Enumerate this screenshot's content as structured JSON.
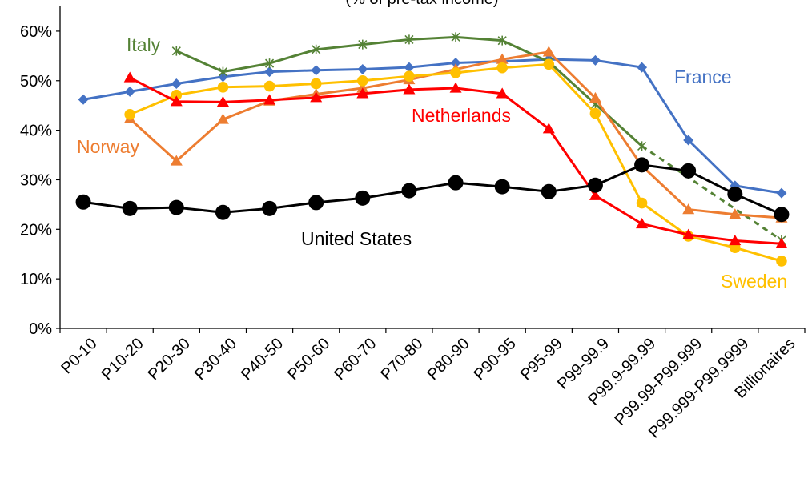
{
  "chart_data": {
    "type": "line",
    "title": "(% of pre-tax income)",
    "xlabel": "",
    "ylabel": "",
    "ylim": [
      0,
      65
    ],
    "yticks": [
      0,
      10,
      20,
      30,
      40,
      50,
      60
    ],
    "ytick_labels": [
      "0%",
      "10%",
      "20%",
      "30%",
      "40%",
      "50%",
      "60%"
    ],
    "grid": false,
    "legend": "inline labels",
    "categories": [
      "P0-10",
      "P10-20",
      "P20-30",
      "P30-40",
      "P40-50",
      "P50-60",
      "P60-70",
      "P70-80",
      "P80-90",
      "P90-95",
      "P95-99",
      "P99-99.9",
      "P99.9-99.99",
      "P99.99-P99.999",
      "P99.999-P99.9999",
      "Billionaires"
    ],
    "series": [
      {
        "name": "France",
        "color": "#4472C4",
        "marker": "diamond",
        "values": [
          46.2,
          47.8,
          49.4,
          50.8,
          51.8,
          52.1,
          52.3,
          52.7,
          53.6,
          53.9,
          54.3,
          54.1,
          52.7,
          38.0,
          28.8,
          27.3
        ]
      },
      {
        "name": "Italy",
        "color": "#548235",
        "marker": "star",
        "values": [
          null,
          null,
          56.0,
          51.8,
          53.5,
          56.3,
          57.3,
          58.3,
          58.8,
          58.1,
          53.8,
          45.3,
          36.8,
          null,
          null,
          17.8
        ],
        "dashed_from_index": 12
      },
      {
        "name": "Norway",
        "color": "#ED7D31",
        "marker": "triangle",
        "values": [
          null,
          42.3,
          33.8,
          42.2,
          45.9,
          47.3,
          48.5,
          50.2,
          52.3,
          54.3,
          55.8,
          46.5,
          32.8,
          24.0,
          23.0,
          22.3
        ]
      },
      {
        "name": "Sweden",
        "color": "#FFC000",
        "marker": "circle",
        "values": [
          null,
          43.2,
          47.1,
          48.7,
          48.9,
          49.4,
          50.0,
          50.9,
          51.6,
          52.6,
          53.3,
          43.4,
          25.3,
          18.6,
          16.3,
          13.6
        ]
      },
      {
        "name": "Netherlands",
        "color": "#FF0000",
        "marker": "triangle",
        "values": [
          null,
          50.6,
          45.8,
          45.7,
          46.1,
          46.6,
          47.4,
          48.2,
          48.5,
          47.4,
          40.3,
          26.8,
          21.1,
          18.9,
          17.7,
          17.1
        ]
      },
      {
        "name": "United States",
        "color": "#000000",
        "marker": "circle-large",
        "values": [
          25.5,
          24.2,
          24.4,
          23.4,
          24.2,
          25.4,
          26.3,
          27.8,
          29.4,
          28.6,
          27.6,
          28.9,
          33.0,
          31.8,
          27.1,
          23.0
        ]
      }
    ],
    "labels": [
      {
        "text": "France",
        "series": "France"
      },
      {
        "text": "Italy",
        "series": "Italy"
      },
      {
        "text": "Norway",
        "series": "Norway"
      },
      {
        "text": "Sweden",
        "series": "Sweden"
      },
      {
        "text": "Netherlands",
        "series": "Netherlands"
      },
      {
        "text": "United States",
        "series": "United States"
      }
    ]
  }
}
